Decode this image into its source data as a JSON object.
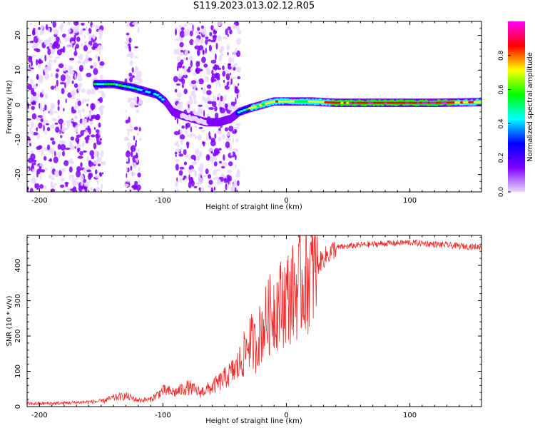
{
  "title": "S119.2023.013.02.12.R05",
  "colors": {
    "snr_line": "#ee2b2b",
    "axis": "#000000",
    "colorbar_stops": [
      "#ff00ff",
      "#ff0000",
      "#ffff00",
      "#00ff00",
      "#00ffff",
      "#0000ff",
      "#7f00ff",
      "#e8d8ff"
    ]
  },
  "chart_data": [
    {
      "type": "heatmap",
      "title": "",
      "xlabel": "Height of straight line (km)",
      "ylabel": "Frequency (Hz)",
      "xlim": [
        -210,
        158
      ],
      "ylim": [
        -25,
        24
      ],
      "xticks": [
        -200,
        -100,
        0,
        100
      ],
      "xtick_labels": [
        "-200",
        "-100",
        "0",
        "100"
      ],
      "yticks": [
        -20,
        -10,
        0,
        10,
        20
      ],
      "ytick_labels": [
        "-20",
        "-10",
        "0",
        "10",
        "20"
      ],
      "colorbar": {
        "label": "Normalized spectral amplitude",
        "range": [
          0,
          1
        ],
        "ticks": [
          0.0,
          0.2,
          0.4,
          0.6,
          0.8
        ],
        "tick_labels": [
          "0.0",
          "0.2",
          "0.4",
          "0.6",
          "0.8"
        ]
      },
      "ridge": {
        "x": [
          -155,
          -140,
          -125,
          -115,
          -105,
          -98,
          -92,
          -85,
          -75,
          -65,
          -55,
          -45,
          -38,
          -30,
          -20,
          -10,
          0,
          20,
          40,
          80,
          120,
          158
        ],
        "frequency": [
          6,
          6,
          5,
          4,
          3,
          1,
          -2,
          -3,
          -4,
          -5,
          -5,
          -4,
          -2,
          -1,
          0,
          1,
          1,
          1,
          0.6,
          0.6,
          0.6,
          0.8
        ],
        "amplitude": [
          0.4,
          0.45,
          0.35,
          0.3,
          0.35,
          0.3,
          0.2,
          0.1,
          0.1,
          0.1,
          0.12,
          0.2,
          0.35,
          0.5,
          0.6,
          0.65,
          0.6,
          0.55,
          0.75,
          0.8,
          0.8,
          0.6
        ]
      },
      "noise_bands": [
        [
          -210,
          -148
        ],
        [
          -130,
          -118
        ],
        [
          -90,
          -38
        ]
      ]
    },
    {
      "type": "line",
      "title": "",
      "xlabel": "Height of straight line (km)",
      "ylabel": "SNR (10 * v/v)",
      "xlim": [
        -210,
        158
      ],
      "ylim": [
        0,
        485
      ],
      "xticks": [
        -200,
        -100,
        0,
        100
      ],
      "xtick_labels": [
        "-200",
        "-100",
        "0",
        "100"
      ],
      "yticks": [
        0,
        100,
        200,
        300,
        400
      ],
      "ytick_labels": [
        "0",
        "100",
        "200",
        "300",
        "400"
      ],
      "series": [
        {
          "name": "SNR",
          "x": [
            -210,
            -180,
            -150,
            -140,
            -130,
            -120,
            -110,
            -100,
            -90,
            -80,
            -70,
            -60,
            -50,
            -45,
            -40,
            -35,
            -30,
            -25,
            -20,
            -15,
            -10,
            -5,
            0,
            5,
            10,
            15,
            20,
            30,
            40,
            60,
            80,
            100,
            120,
            140,
            158
          ],
          "values": [
            8,
            10,
            15,
            25,
            30,
            18,
            20,
            45,
            40,
            55,
            40,
            55,
            80,
            95,
            110,
            140,
            190,
            170,
            220,
            250,
            280,
            290,
            310,
            320,
            340,
            360,
            380,
            420,
            450,
            458,
            462,
            465,
            460,
            455,
            452
          ]
        }
      ]
    }
  ]
}
